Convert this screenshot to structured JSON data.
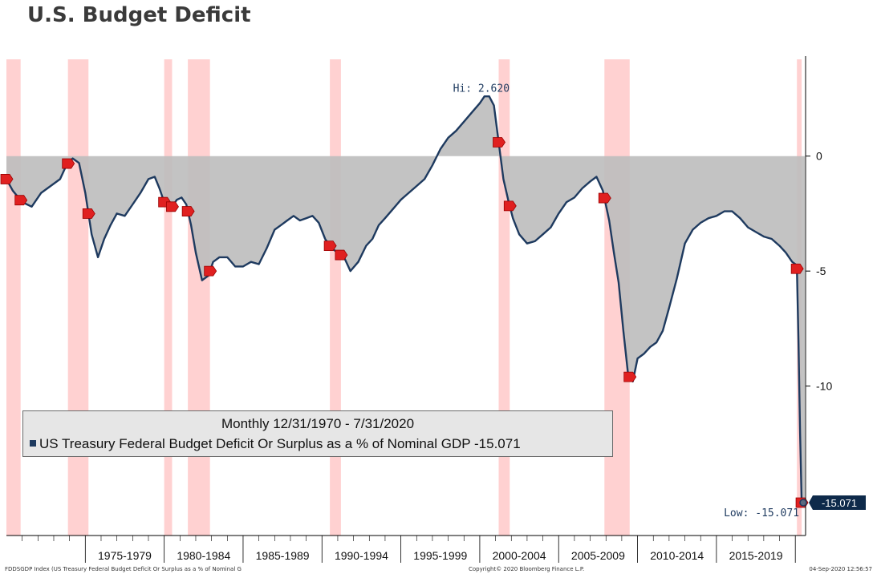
{
  "page": {
    "title": "U.S. Budget Deficit",
    "footer_left": "FDDSGDP Index (US Treasury Federal Budget Deficit Or Surplus as a % of Nominal G",
    "footer_center": "Copyright© 2020 Bloomberg Finance L.P.",
    "footer_right": "04-Sep-2020 12:56:57"
  },
  "chart_data": {
    "type": "area",
    "title": "U.S. Budget Deficit",
    "xlabel": "",
    "ylabel": "",
    "frequency": "Monthly 12/31/1970 - 7/31/2020",
    "x_range": [
      1970.0,
      2020.6
    ],
    "ylim": [
      -16.5,
      4.0
    ],
    "y_ticks": [
      0,
      -5,
      -10
    ],
    "y_tick_labels": [
      "0",
      "-5",
      "-10"
    ],
    "x_tick_labels": [
      "1975-1979",
      "1980-1984",
      "1985-1989",
      "1990-1994",
      "1995-1999",
      "2000-2004",
      "2005-2009",
      "2010-2014",
      "2015-2019"
    ],
    "x_tick_ranges": [
      [
        1975,
        1980
      ],
      [
        1980,
        1985
      ],
      [
        1985,
        1990
      ],
      [
        1990,
        1995
      ],
      [
        1995,
        2000
      ],
      [
        2000,
        2005
      ],
      [
        2005,
        2010
      ],
      [
        2010,
        2015
      ],
      [
        2015,
        2020
      ]
    ],
    "grid": false,
    "legend": {
      "placement": "bottom-left",
      "period": "Monthly 12/31/1970 - 7/31/2020",
      "entry": "US Treasury Federal Budget Deficit Or Surplus as a % of Nominal GDP -15.071"
    },
    "series": [
      {
        "name": "US Treasury Federal Budget Deficit Or Surplus as a % of Nominal GDP",
        "color": "#1e3a5f",
        "fill": "#bdbdbd",
        "x": [
          1970.0,
          1970.4,
          1971.0,
          1971.6,
          1972.2,
          1972.8,
          1973.4,
          1973.8,
          1974.2,
          1974.6,
          1975.0,
          1975.4,
          1975.8,
          1976.2,
          1976.6,
          1977.0,
          1977.5,
          1978.0,
          1978.5,
          1979.0,
          1979.4,
          1979.7,
          1980.0,
          1980.4,
          1980.8,
          1981.1,
          1981.4,
          1981.7,
          1982.0,
          1982.4,
          1982.8,
          1983.1,
          1983.5,
          1984.0,
          1984.5,
          1985.0,
          1985.5,
          1986.0,
          1986.5,
          1987.0,
          1987.4,
          1987.8,
          1988.2,
          1988.6,
          1989.0,
          1989.4,
          1989.8,
          1990.2,
          1990.6,
          1991.0,
          1991.4,
          1991.8,
          1992.3,
          1992.8,
          1993.2,
          1993.6,
          1994.0,
          1994.5,
          1995.0,
          1995.5,
          1996.0,
          1996.5,
          1997.0,
          1997.5,
          1998.0,
          1998.5,
          1999.0,
          1999.5,
          2000.0,
          2000.3,
          2000.6,
          2000.9,
          2001.2,
          2001.5,
          2001.8,
          2002.1,
          2002.5,
          2003.0,
          2003.5,
          2004.0,
          2004.5,
          2005.0,
          2005.5,
          2006.0,
          2006.5,
          2007.0,
          2007.4,
          2007.8,
          2008.2,
          2008.5,
          2008.8,
          2009.1,
          2009.4,
          2009.7,
          2010.0,
          2010.4,
          2010.8,
          2011.2,
          2011.6,
          2012.0,
          2012.5,
          2013.0,
          2013.5,
          2014.0,
          2014.5,
          2015.0,
          2015.5,
          2016.0,
          2016.5,
          2017.0,
          2017.5,
          2018.0,
          2018.5,
          2019.0,
          2019.4,
          2019.8,
          2020.0,
          2020.1,
          2020.2,
          2020.3,
          2020.4,
          2020.5,
          2020.6
        ],
        "values": [
          -1.0,
          -1.5,
          -2.0,
          -2.2,
          -1.6,
          -1.3,
          -1.0,
          -0.4,
          -0.1,
          -0.3,
          -1.6,
          -3.4,
          -4.4,
          -3.6,
          -3.0,
          -2.5,
          -2.6,
          -2.1,
          -1.6,
          -1.0,
          -0.9,
          -1.4,
          -2.0,
          -2.3,
          -1.9,
          -1.8,
          -2.1,
          -3.0,
          -4.2,
          -5.4,
          -5.2,
          -4.6,
          -4.4,
          -4.4,
          -4.8,
          -4.8,
          -4.6,
          -4.7,
          -4.0,
          -3.2,
          -3.0,
          -2.8,
          -2.6,
          -2.8,
          -2.7,
          -2.6,
          -2.9,
          -3.6,
          -4.0,
          -4.2,
          -4.4,
          -5.0,
          -4.6,
          -3.9,
          -3.6,
          -3.0,
          -2.7,
          -2.3,
          -1.9,
          -1.6,
          -1.3,
          -1.0,
          -0.4,
          0.3,
          0.8,
          1.1,
          1.5,
          1.9,
          2.3,
          2.6,
          2.6,
          2.2,
          0.6,
          -1.0,
          -1.9,
          -2.7,
          -3.4,
          -3.8,
          -3.7,
          -3.4,
          -3.1,
          -2.5,
          -2.0,
          -1.8,
          -1.4,
          -1.1,
          -0.9,
          -1.5,
          -2.8,
          -4.2,
          -5.5,
          -7.6,
          -9.5,
          -9.8,
          -8.8,
          -8.6,
          -8.3,
          -8.1,
          -7.6,
          -6.6,
          -5.3,
          -3.8,
          -3.2,
          -2.9,
          -2.7,
          -2.6,
          -2.4,
          -2.4,
          -2.7,
          -3.1,
          -3.3,
          -3.5,
          -3.6,
          -3.9,
          -4.2,
          -4.6,
          -4.7,
          -4.9,
          -8.0,
          -12.0,
          -15.071,
          -15.071,
          -15.071
        ]
      }
    ],
    "recessions": [
      [
        1970.0,
        1970.9
      ],
      [
        1973.9,
        1975.2
      ],
      [
        1980.0,
        1980.5
      ],
      [
        1981.5,
        1982.9
      ],
      [
        1990.5,
        1991.2
      ],
      [
        2001.2,
        2001.9
      ],
      [
        2007.9,
        2009.5
      ],
      [
        2020.1,
        2020.4
      ]
    ],
    "annotations": {
      "high_label": "Hi: 2.620",
      "high_x": 2000.3,
      "high_value": 2.62,
      "low_label": "Low: -15.071",
      "low_x": 2020.5,
      "low_value": -15.071,
      "last_value_label": "-15.071"
    },
    "colors": {
      "line": "#1e3a5f",
      "area": "#bdbdbd",
      "recession": "#ffc9c9",
      "marker": "#e02020"
    }
  }
}
